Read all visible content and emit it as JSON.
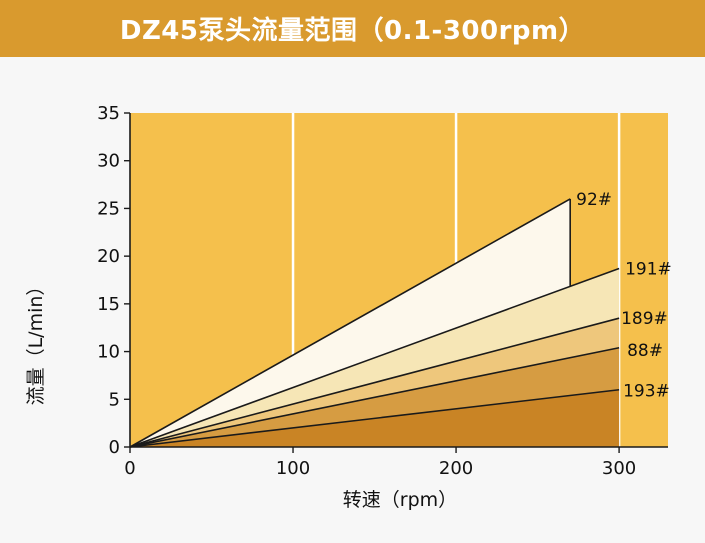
{
  "header": {
    "title": "DZ45泵头流量范围（0.1-300rpm）"
  },
  "colors": {
    "banner": "#d99a2e",
    "plot_background": "#f5c04c",
    "gridline": "#ffffff",
    "outline": "#1a1a1a"
  },
  "chart_data": {
    "type": "area",
    "title": "DZ45泵头流量范围（0.1-300rpm）",
    "xlabel": "转速（rpm）",
    "ylabel": "流量（L/min）",
    "xlim": [
      0,
      330
    ],
    "ylim": [
      0,
      35
    ],
    "x_ticks": [
      "0",
      "100",
      "200",
      "300"
    ],
    "y_ticks": [
      "0",
      "5",
      "10",
      "15",
      "20",
      "25",
      "30",
      "35"
    ],
    "grid": "vertical lines at x = 100, 200, 300",
    "series": [
      {
        "name": "92#",
        "x": [
          0,
          270
        ],
        "y": [
          0,
          26.0
        ],
        "color": "#fdf8ec"
      },
      {
        "name": "191#",
        "x": [
          0,
          300
        ],
        "y": [
          0,
          18.7
        ],
        "color": "#f6e6b6"
      },
      {
        "name": "189#",
        "x": [
          0,
          300
        ],
        "y": [
          0,
          13.5
        ],
        "color": "#eec77c"
      },
      {
        "name": "88#",
        "x": [
          0,
          300
        ],
        "y": [
          0,
          10.4
        ],
        "color": "#d69c42"
      },
      {
        "name": "193#",
        "x": [
          0,
          300
        ],
        "y": [
          0,
          6.0
        ],
        "color": "#c98425"
      }
    ],
    "notes": "92# band is drawn between 92# line and 191# line, ending with a vertical edge at x = 270"
  }
}
